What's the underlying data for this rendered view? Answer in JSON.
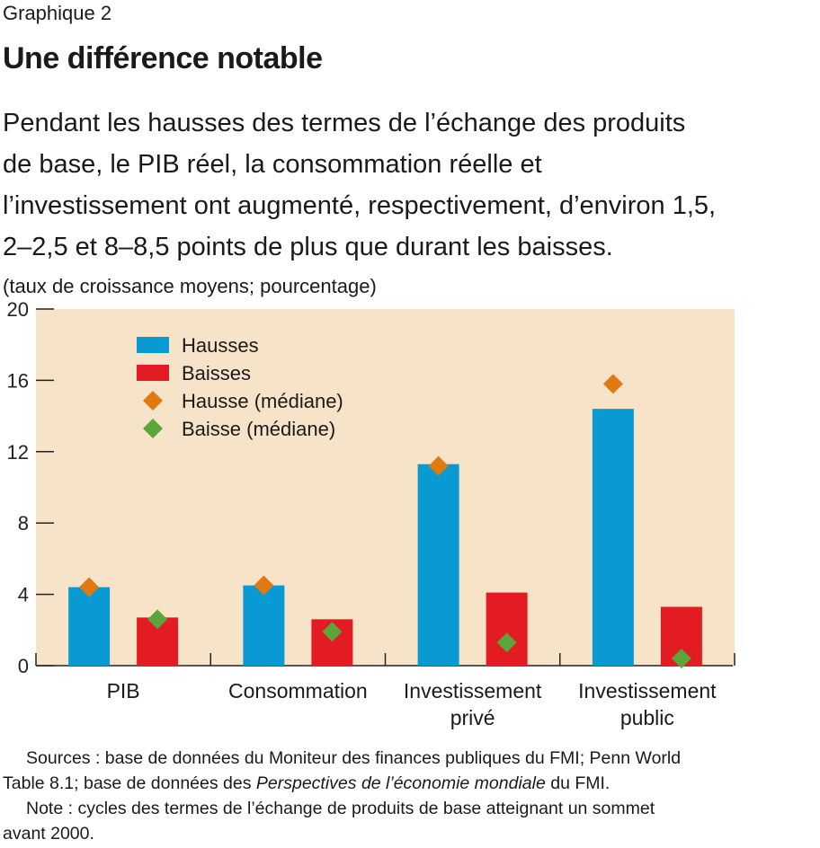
{
  "header": {
    "kicker": "Graphique 2",
    "title": "Une différence notable",
    "subtitle_lines": [
      "Pendant les hausses des termes de l’échange des produits",
      "de base, le PIB réel, la consommation réelle et",
      "l’investissement ont augmenté, respectivement, d’environ 1,5,",
      "2–2,5 et 8–8,5 points de plus que durant les baisses."
    ],
    "units": "(taux de croissance moyens; pourcentage)"
  },
  "chart_data": {
    "type": "bar",
    "categories": [
      [
        "PIB"
      ],
      [
        "Consommation"
      ],
      [
        "Investissement",
        "privé"
      ],
      [
        "Investissement",
        "public"
      ]
    ],
    "series": [
      {
        "name": "Hausses",
        "kind": "bar",
        "color": "#0a9ad3",
        "values": [
          4.4,
          4.5,
          11.3,
          14.4
        ]
      },
      {
        "name": "Baisses",
        "kind": "bar",
        "color": "#e31b23",
        "values": [
          2.7,
          2.6,
          4.1,
          3.3
        ]
      },
      {
        "name": "Hausse (médiane)",
        "kind": "marker",
        "color": "#e07a10",
        "values": [
          4.4,
          4.5,
          11.2,
          15.8
        ]
      },
      {
        "name": "Baisse (médiane)",
        "kind": "marker",
        "color": "#5ba53a",
        "values": [
          2.6,
          1.9,
          1.3,
          0.4
        ]
      }
    ],
    "ylim": [
      0,
      20
    ],
    "yticks": [
      0,
      4,
      8,
      12,
      16,
      20
    ],
    "background": "#f7e3c8",
    "legend_position": "top-left"
  },
  "footer": {
    "sources_label": "Sources : base de données du Moniteur des finances publiques du FMI; Penn World",
    "sources_cont_1": "Table 8.1; base de données des ",
    "sources_italic": "Perspectives de l’économie mondiale",
    "sources_cont_2": " du FMI.",
    "note_line1": "Note : cycles des termes de l’échange de produits de base atteignant un sommet",
    "note_line2": "avant 2000."
  }
}
